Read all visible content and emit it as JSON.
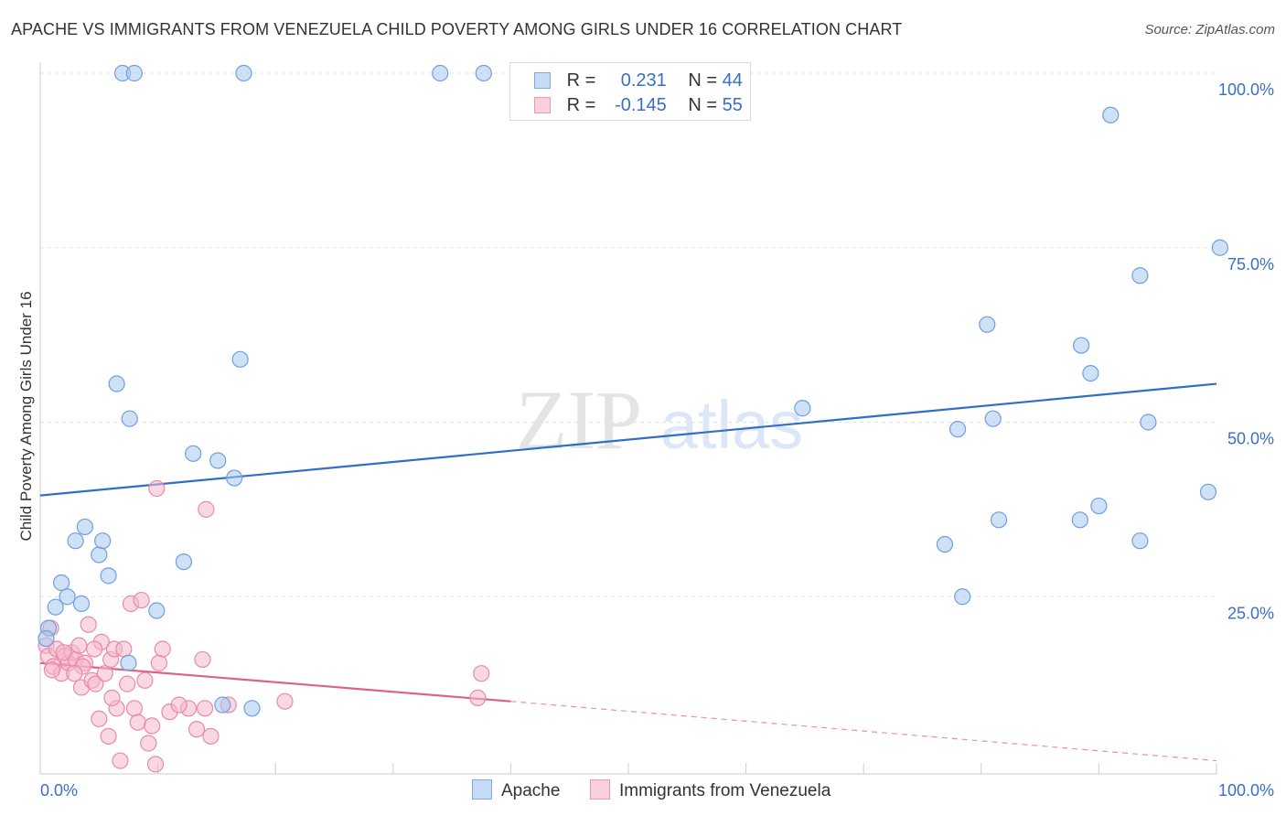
{
  "header": {
    "title": "APACHE VS IMMIGRANTS FROM VENEZUELA CHILD POVERTY AMONG GIRLS UNDER 16 CORRELATION CHART",
    "source": "Source: ZipAtlas.com"
  },
  "watermark": {
    "zip": "ZIP",
    "atlas": "atlas"
  },
  "legend": {
    "rows": [
      {
        "r_label": "R =",
        "r_value": "0.231",
        "n_label": "N =",
        "n_value": "44",
        "color": "#a8c8f0"
      },
      {
        "r_label": "R =",
        "r_value": "-0.145",
        "n_label": "N =",
        "n_value": "55",
        "color": "#f6b8cc"
      }
    ]
  },
  "chart_data": {
    "type": "scatter",
    "title": "APACHE VS IMMIGRANTS FROM VENEZUELA CHILD POVERTY AMONG GIRLS UNDER 16 CORRELATION CHART",
    "xlabel": "",
    "ylabel": "Child Poverty Among Girls Under 16",
    "xlim": [
      0,
      100
    ],
    "ylim": [
      0,
      100
    ],
    "x_tick_labels": [
      "0.0%",
      "100.0%"
    ],
    "y_ticks": [
      {
        "value": 25,
        "label": "25.0%"
      },
      {
        "value": 50,
        "label": "50.0%"
      },
      {
        "value": 75,
        "label": "75.0%"
      },
      {
        "value": 100,
        "label": "100.0%"
      }
    ],
    "grid": true,
    "series": [
      {
        "name": "Apache",
        "color": "#a8c8f0",
        "stroke": "#6f9fdc",
        "line_color": "#2f6fc8",
        "trend": {
          "x": [
            0,
            100
          ],
          "y": [
            39.5,
            55.5
          ],
          "dashed_from": null
        },
        "points": [
          [
            0.7,
            20.5
          ],
          [
            1.3,
            23.5
          ],
          [
            1.8,
            27
          ],
          [
            2.3,
            25
          ],
          [
            3.0,
            33
          ],
          [
            3.5,
            24
          ],
          [
            3.8,
            35
          ],
          [
            5.0,
            31
          ],
          [
            5.3,
            33
          ],
          [
            5.8,
            28
          ],
          [
            6.5,
            55.5
          ],
          [
            7.0,
            100
          ],
          [
            7.5,
            15.5
          ],
          [
            7.6,
            50.5
          ],
          [
            8.0,
            100
          ],
          [
            9.9,
            23
          ],
          [
            12.2,
            30
          ],
          [
            13.0,
            45.5
          ],
          [
            15.1,
            44.5
          ],
          [
            15.5,
            9.5
          ],
          [
            16.5,
            42
          ],
          [
            17.3,
            100
          ],
          [
            18.0,
            9
          ],
          [
            34.0,
            100
          ],
          [
            37.7,
            100
          ],
          [
            64.8,
            52
          ],
          [
            76.9,
            32.5
          ],
          [
            78.0,
            49
          ],
          [
            78.4,
            25
          ],
          [
            80.5,
            64
          ],
          [
            81.0,
            50.5
          ],
          [
            81.5,
            36
          ],
          [
            88.4,
            36
          ],
          [
            88.5,
            61
          ],
          [
            89.3,
            57
          ],
          [
            90.0,
            38
          ],
          [
            91.0,
            94
          ],
          [
            93.5,
            71
          ],
          [
            93.5,
            33
          ],
          [
            94.2,
            50
          ],
          [
            99.3,
            40
          ],
          [
            100.3,
            75
          ],
          [
            17.0,
            59
          ],
          [
            0.5,
            19
          ]
        ]
      },
      {
        "name": "Immigrants from Venezuela",
        "color": "#f6b8cc",
        "stroke": "#e88aa8",
        "line_color": "#e0608c",
        "trend": {
          "x": [
            0,
            40
          ],
          "y": [
            15.5,
            10
          ],
          "dashed_to": {
            "x": 100,
            "y": 1.5
          }
        },
        "points": [
          [
            0.5,
            18
          ],
          [
            0.7,
            16.5
          ],
          [
            0.9,
            20.5
          ],
          [
            1.1,
            15
          ],
          [
            1.4,
            17.5
          ],
          [
            1.8,
            14
          ],
          [
            2.1,
            16.5
          ],
          [
            2.4,
            15.5
          ],
          [
            2.7,
            17
          ],
          [
            3.0,
            16
          ],
          [
            3.3,
            18
          ],
          [
            3.5,
            12
          ],
          [
            3.8,
            15.5
          ],
          [
            4.1,
            21
          ],
          [
            4.4,
            13
          ],
          [
            4.7,
            12.5
          ],
          [
            5.0,
            7.5
          ],
          [
            5.2,
            18.5
          ],
          [
            5.5,
            14
          ],
          [
            5.8,
            5
          ],
          [
            6.0,
            16
          ],
          [
            6.3,
            17.5
          ],
          [
            6.5,
            9
          ],
          [
            6.8,
            1.5
          ],
          [
            7.1,
            17.5
          ],
          [
            7.4,
            12.5
          ],
          [
            7.7,
            24
          ],
          [
            8.0,
            9
          ],
          [
            8.3,
            7
          ],
          [
            8.6,
            24.5
          ],
          [
            8.9,
            13
          ],
          [
            9.2,
            4
          ],
          [
            9.5,
            6.5
          ],
          [
            9.8,
            1
          ],
          [
            10.1,
            15.5
          ],
          [
            10.4,
            17.5
          ],
          [
            11.0,
            8.5
          ],
          [
            12.6,
            9
          ],
          [
            13.3,
            6
          ],
          [
            13.8,
            16
          ],
          [
            14.1,
            37.5
          ],
          [
            14.5,
            5
          ],
          [
            14.0,
            9
          ],
          [
            16.0,
            9.5
          ],
          [
            20.8,
            10
          ],
          [
            37.2,
            10.5
          ],
          [
            37.5,
            14
          ],
          [
            9.9,
            40.5
          ],
          [
            2.0,
            17
          ],
          [
            3.6,
            15
          ],
          [
            4.6,
            17.5
          ],
          [
            1.0,
            14.5
          ],
          [
            2.9,
            14
          ],
          [
            6.1,
            10.5
          ],
          [
            11.8,
            9.5
          ]
        ]
      }
    ]
  }
}
